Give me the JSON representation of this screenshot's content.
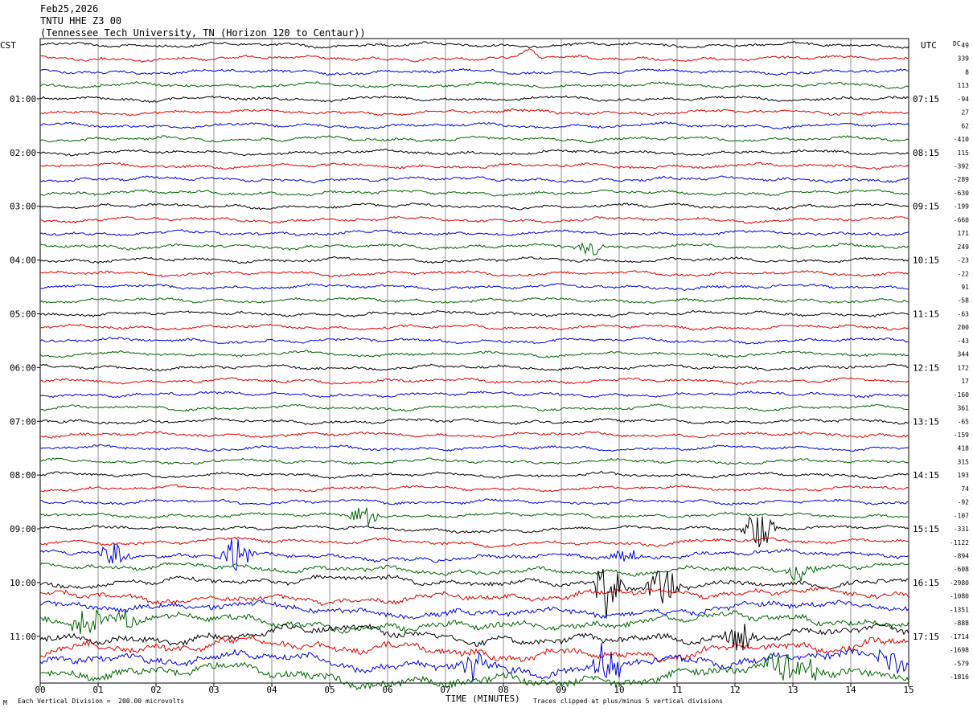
{
  "header": {
    "date": "Feb25,2026",
    "station": "TNTU HHE Z3 00",
    "location": "(Tennessee Tech University, TN (Horizon 120 to Centaur))"
  },
  "footer": {
    "scale_note": "Each Vertical Division =  200.00 microvolts",
    "clip_note": "Traces clipped at plus/minus 5 vertical divisions",
    "corner_mark": "M"
  },
  "chart_data": {
    "type": "line",
    "xlabel": "TIME (MINUTES)",
    "x_ticks": [
      "00",
      "01",
      "02",
      "03",
      "04",
      "05",
      "06",
      "07",
      "08",
      "09",
      "10",
      "11",
      "12",
      "13",
      "14",
      "15"
    ],
    "xlim": [
      0,
      15
    ],
    "left_axis_title": "CST",
    "right_axis_title": "UTC",
    "dc_title": "DC",
    "left_time_labels": [
      "01:00",
      "02:00",
      "03:00",
      "04:00",
      "05:00",
      "06:00",
      "07:00",
      "08:00",
      "09:00",
      "10:00",
      "11:00"
    ],
    "right_time_labels": [
      "07:15",
      "08:15",
      "09:15",
      "10:15",
      "11:15",
      "12:15",
      "13:15",
      "14:15",
      "15:15",
      "16:15",
      "17:15"
    ],
    "trace_colors": [
      "#000000",
      "#e00000",
      "#0000e0",
      "#006400"
    ],
    "trace_count": 48,
    "dc_offsets": [
      "49",
      "339",
      "8",
      "113",
      "-94",
      "27",
      "62",
      "-410",
      "115",
      "-392",
      "-289",
      "-630",
      "-199",
      "-660",
      "171",
      "249",
      "-23",
      "-22",
      "91",
      "-58",
      "-63",
      "200",
      "-43",
      "344",
      "172",
      "17",
      "-160",
      "361",
      "-65",
      "-159",
      "418",
      "315",
      "193",
      "74",
      "-92",
      "-107",
      "-331",
      "-1122",
      "-894",
      "-608",
      "-2980",
      "-1080",
      "-1351",
      "-888",
      "-1714",
      "-1698",
      "-579",
      "-1816"
    ],
    "events": [
      {
        "trace": 1,
        "minute": 8.45,
        "amp": 1.0,
        "kind": "bump"
      },
      {
        "trace": 15,
        "minute": 9.5,
        "amp": 0.8,
        "kind": "burst"
      },
      {
        "trace": 35,
        "minute": 5.6,
        "amp": 1.2,
        "kind": "burst"
      },
      {
        "trace": 36,
        "minute": 12.4,
        "amp": 3.0,
        "kind": "burst"
      },
      {
        "trace": 38,
        "minute": 1.3,
        "amp": 1.5,
        "kind": "burst"
      },
      {
        "trace": 38,
        "minute": 3.4,
        "amp": 2.5,
        "kind": "burst"
      },
      {
        "trace": 38,
        "minute": 10.1,
        "amp": 1.2,
        "kind": "burst"
      },
      {
        "trace": 39,
        "minute": 13.1,
        "amp": 1.2,
        "kind": "burst"
      },
      {
        "trace": 40,
        "minute": 9.8,
        "amp": 3.5,
        "kind": "burst"
      },
      {
        "trace": 40,
        "minute": 10.75,
        "amp": 2.5,
        "kind": "burst"
      },
      {
        "trace": 43,
        "minute": 0.8,
        "amp": 2.2,
        "kind": "burst"
      },
      {
        "trace": 43,
        "minute": 1.4,
        "amp": 1.2,
        "kind": "burst"
      },
      {
        "trace": 44,
        "minute": 12.1,
        "amp": 2.0,
        "kind": "burst"
      },
      {
        "trace": 46,
        "minute": 7.5,
        "amp": 1.8,
        "kind": "burst"
      },
      {
        "trace": 46,
        "minute": 9.8,
        "amp": 2.8,
        "kind": "burst"
      },
      {
        "trace": 46,
        "minute": 14.7,
        "amp": 1.4,
        "kind": "burst"
      },
      {
        "trace": 47,
        "minute": 12.8,
        "amp": 2.5,
        "kind": "burst"
      },
      {
        "trace": 47,
        "minute": 13.3,
        "amp": 1.5,
        "kind": "burst"
      }
    ]
  }
}
